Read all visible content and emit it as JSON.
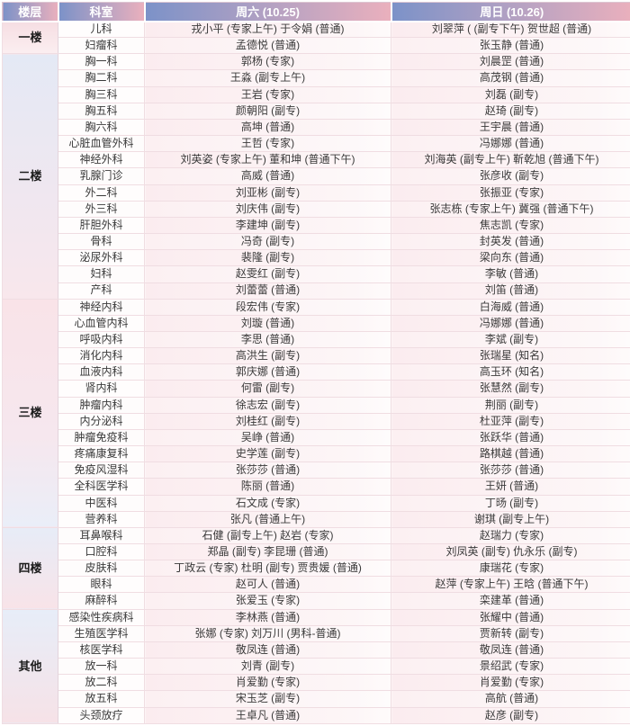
{
  "theme": {
    "header_grad_from": "#7c92c8",
    "header_grad_to": "#eab0bd",
    "grid_line": "#f0dde2",
    "body_text": "#3a3a3a"
  },
  "header": {
    "floor": "楼层",
    "department": "科室",
    "saturday": "周六 (10.25)",
    "sunday": "周日 (10.26)"
  },
  "groups": [
    {
      "floor": "一楼",
      "rows": [
        {
          "dept": "儿科",
          "sat": "戎小平 (专家上午) 于令娟 (普通)",
          "sun": "刘翠萍 ( (副专下午) 贺世超 (普通)"
        },
        {
          "dept": "妇瘤科",
          "sat": "孟德悦 (普通)",
          "sun": "张玉静 (普通)"
        }
      ]
    },
    {
      "floor": "二楼",
      "rows": [
        {
          "dept": "胸一科",
          "sat": "郭杨 (专家)",
          "sun": "刘晨罡 (普通)"
        },
        {
          "dept": "胸二科",
          "sat": "王淼 (副专上午)",
          "sun": "高茂钢 (普通)"
        },
        {
          "dept": "胸三科",
          "sat": "王岩 (专家)",
          "sun": "刘磊 (副专)"
        },
        {
          "dept": "胸五科",
          "sat": "颜朝阳 (副专)",
          "sun": "赵琦 (副专)"
        },
        {
          "dept": "胸六科",
          "sat": "高坤 (普通)",
          "sun": "王宇晨 (普通)"
        },
        {
          "dept": "心脏血管外科",
          "sat": "王哲 (专家)",
          "sun": "冯娜娜 (普通)"
        },
        {
          "dept": "神经外科",
          "sat": "刘英姿 (专家上午) 董和坤 (普通下午)",
          "sun": "刘海英 (副专上午) 靳乾旭 (普通下午)"
        },
        {
          "dept": "乳腺门诊",
          "sat": "高威 (普通)",
          "sun": "张彦收 (副专)"
        },
        {
          "dept": "外二科",
          "sat": "刘亚彬 (副专)",
          "sun": "张振亚 (专家)"
        },
        {
          "dept": "外三科",
          "sat": "刘庆伟 (副专)",
          "sun": "张志栋 (专家上午) 冀强 (普通下午)"
        },
        {
          "dept": "肝胆外科",
          "sat": "李建坤 (副专)",
          "sun": "焦志凯 (专家)"
        },
        {
          "dept": "骨科",
          "sat": "冯奇 (副专)",
          "sun": "封英发 (普通)"
        },
        {
          "dept": "泌尿外科",
          "sat": "裴隆 (副专)",
          "sun": "梁向东 (普通)"
        },
        {
          "dept": "妇科",
          "sat": "赵雯红 (副专)",
          "sun": "李敏 (普通)"
        },
        {
          "dept": "产科",
          "sat": "刘蕾蕾 (普通)",
          "sun": "刘笛 (普通)"
        }
      ]
    },
    {
      "floor": "三楼",
      "rows": [
        {
          "dept": "神经内科",
          "sat": "段宏伟 (专家)",
          "sun": "白海威 (普通)"
        },
        {
          "dept": "心血管内科",
          "sat": "刘璇 (普通)",
          "sun": "冯娜娜 (普通)"
        },
        {
          "dept": "呼吸内科",
          "sat": "李思 (普通)",
          "sun": "李斌 (副专)"
        },
        {
          "dept": "消化内科",
          "sat": "高洪生 (副专)",
          "sun": "张瑞星 (知名)"
        },
        {
          "dept": "血液内科",
          "sat": "郭庆娜 (普通)",
          "sun": "高玉环 (知名)"
        },
        {
          "dept": "肾内科",
          "sat": "何雷 (副专)",
          "sun": "张慧然 (副专)"
        },
        {
          "dept": "肿瘤内科",
          "sat": "徐志宏 (副专)",
          "sun": "荆丽 (副专)"
        },
        {
          "dept": "内分泌科",
          "sat": "刘桂红 (副专)",
          "sun": "杜亚萍 (副专)"
        },
        {
          "dept": "肿瘤免疫科",
          "sat": "吴峥 (普通)",
          "sun": "张跃华 (普通)"
        },
        {
          "dept": "疼痛康复科",
          "sat": "史学莲 (副专)",
          "sun": "路棋越 (普通)"
        },
        {
          "dept": "免疫风湿科",
          "sat": "张莎莎 (普通)",
          "sun": "张莎莎 (普通)"
        },
        {
          "dept": "全科医学科",
          "sat": "陈丽 (普通)",
          "sun": "王妍 (普通)"
        },
        {
          "dept": "中医科",
          "sat": "石文成 (专家)",
          "sun": "丁旸 (副专)"
        },
        {
          "dept": "营养科",
          "sat": "张凡 (普通上午)",
          "sun": "谢琪 (副专上午)"
        }
      ]
    },
    {
      "floor": "四楼",
      "rows": [
        {
          "dept": "耳鼻喉科",
          "sat": "石健 (副专上午) 赵岩 (专家)",
          "sun": "赵瑞力 (专家)"
        },
        {
          "dept": "口腔科",
          "sat": "郑晶 (副专) 李昆珊 (普通)",
          "sun": "刘凤英 (副专) 仇永乐 (副专)"
        },
        {
          "dept": "皮肤科",
          "sat": "丁政云 (专家) 杜明 (副专) 贾贵媛 (普通)",
          "sun": "康瑞花 (专家)"
        },
        {
          "dept": "眼科",
          "sat": "赵可人 (普通)",
          "sun": "赵萍 (专家上午) 王晗 (普通下午)"
        },
        {
          "dept": "麻醉科",
          "sat": "张爱玉 (专家)",
          "sun": "栾建革 (普通)"
        }
      ]
    },
    {
      "floor": "其他",
      "rows": [
        {
          "dept": "感染性疾病科",
          "sat": "李林燕 (普通)",
          "sun": "张耀中 (普通)"
        },
        {
          "dept": "生殖医学科",
          "sat": "张娜 (专家) 刘万川 (男科-普通)",
          "sun": "贾新转 (副专)"
        },
        {
          "dept": "核医学科",
          "sat": "敬凤连 (普通)",
          "sun": "敬凤连 (普通)"
        },
        {
          "dept": "放一科",
          "sat": "刘青 (副专)",
          "sun": "景绍武 (专家)"
        },
        {
          "dept": "放二科",
          "sat": "肖爱勤 (专家)",
          "sun": "肖爱勤 (专家)"
        },
        {
          "dept": "放五科",
          "sat": "宋玉芝 (副专)",
          "sun": "高航 (普通)"
        },
        {
          "dept": "头颈放疗",
          "sat": "王卓凡 (普通)",
          "sun": "赵彦 (副专)"
        }
      ]
    }
  ]
}
